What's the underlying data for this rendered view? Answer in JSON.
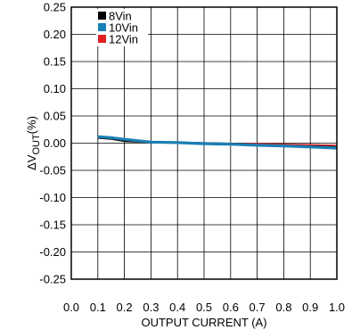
{
  "chart_data": {
    "type": "line",
    "title": "",
    "xlabel": "OUTPUT CURRENT (A)",
    "ylabel": {
      "prefix": "ΔV",
      "sub": "OUT",
      "suffix": "(%)"
    },
    "xlim": [
      0.0,
      1.0
    ],
    "ylim": [
      -0.25,
      0.25
    ],
    "x_ticks": [
      "0.0",
      "0.1",
      "0.2",
      "0.3",
      "0.4",
      "0.5",
      "0.6",
      "0.7",
      "0.8",
      "0.9",
      "1.0"
    ],
    "y_ticks": [
      "0.25",
      "0.20",
      "0.15",
      "0.10",
      "0.05",
      "0.00",
      "-0.05",
      "-0.10",
      "-0.15",
      "-0.20",
      "-0.25"
    ],
    "grid": true,
    "legend_position": "top-left",
    "series": [
      {
        "name": "8Vin",
        "color": "#000000",
        "x": [
          0.1,
          0.15,
          0.2,
          0.3,
          0.4,
          0.5,
          0.6,
          0.7,
          0.8,
          0.9,
          1.0
        ],
        "y": [
          0.01,
          0.008,
          0.004,
          0.002,
          0.001,
          0.0,
          -0.001,
          -0.002,
          -0.004,
          -0.005,
          -0.007
        ]
      },
      {
        "name": "10Vin",
        "color": "#1a7fb5",
        "x": [
          0.1,
          0.15,
          0.2,
          0.3,
          0.4,
          0.5,
          0.6,
          0.7,
          0.8,
          0.9,
          1.0
        ],
        "y": [
          0.012,
          0.01,
          0.007,
          0.002,
          0.001,
          -0.001,
          -0.002,
          -0.004,
          -0.005,
          -0.007,
          -0.009
        ]
      },
      {
        "name": "12Vin",
        "color": "#e02020",
        "x": [
          0.1,
          0.15,
          0.2,
          0.3,
          0.4,
          0.5,
          0.6,
          0.7,
          0.8,
          0.9,
          1.0
        ],
        "y": [
          0.011,
          0.009,
          0.006,
          0.003,
          0.002,
          0.0,
          -0.001,
          -0.001,
          -0.002,
          -0.003,
          -0.004
        ]
      }
    ]
  }
}
